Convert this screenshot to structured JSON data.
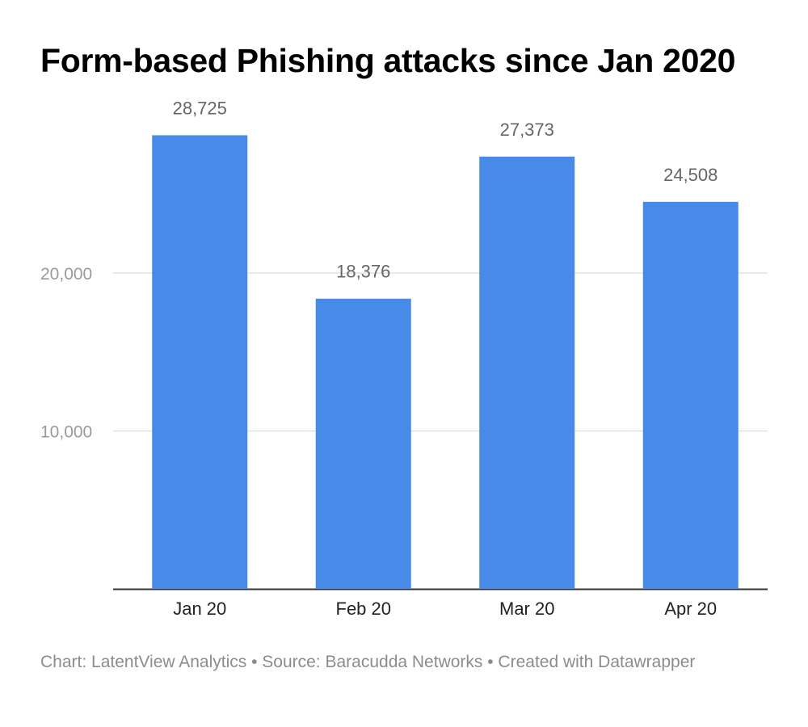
{
  "title": "Form-based Phishing attacks since Jan 2020",
  "footer": {
    "text": "Chart: LatentView Analytics • Source: Baracudda Networks • Created with Datawrapper"
  },
  "colors": {
    "bar": "#478ae8",
    "grid": "#e2e2e2",
    "axis": "#333333"
  },
  "chart_data": {
    "type": "bar",
    "title": "Form-based Phishing attacks since Jan 2020",
    "xlabel": "",
    "ylabel": "",
    "categories": [
      "Jan 20",
      "Feb 20",
      "Mar 20",
      "Apr 20"
    ],
    "values": [
      28725,
      18376,
      27373,
      24508
    ],
    "value_labels": [
      "28,725",
      "18,376",
      "27,373",
      "24,508"
    ],
    "yticks": [
      10000,
      20000
    ],
    "ytick_labels": [
      "10,000",
      "20,000"
    ],
    "ylim": [
      0,
      30000
    ],
    "grid": true,
    "legend": "none"
  }
}
